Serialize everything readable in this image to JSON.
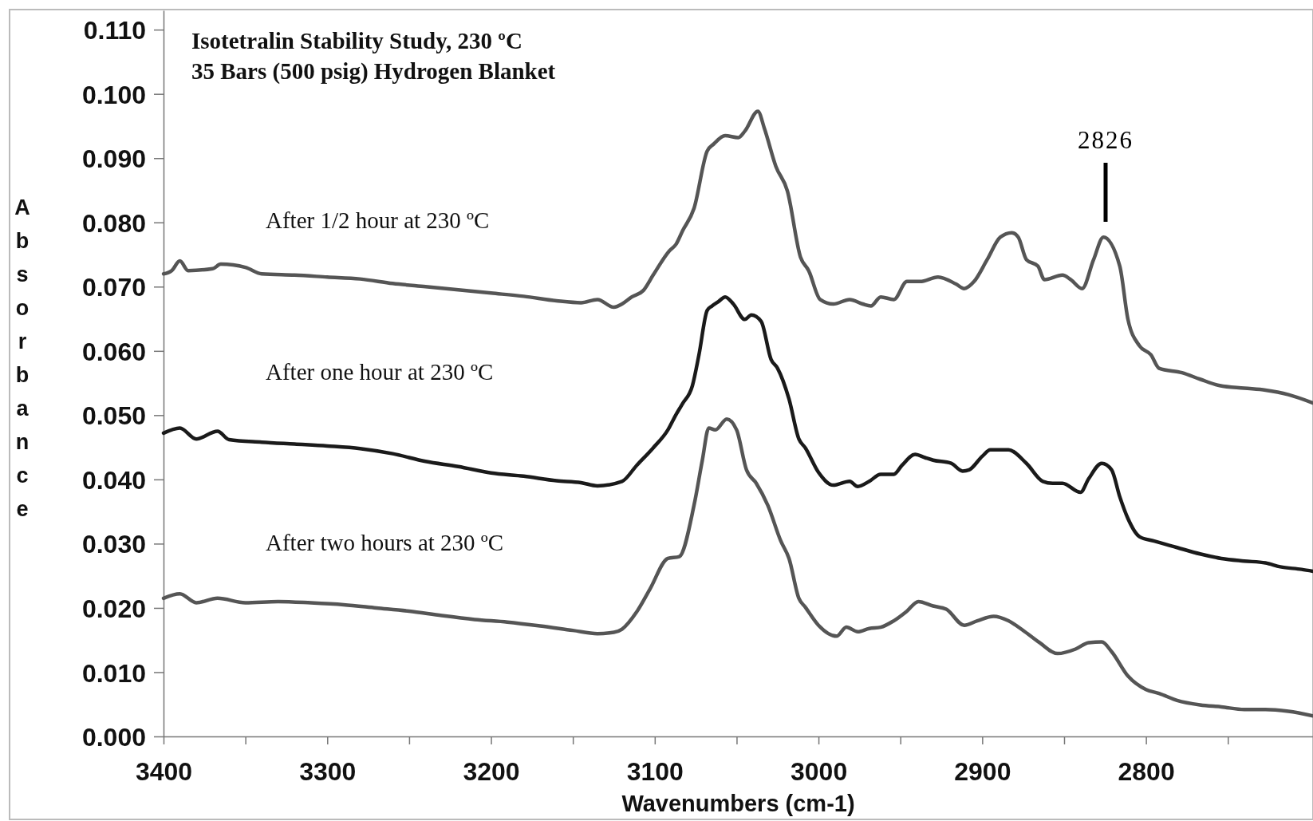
{
  "chart_data": {
    "type": "line",
    "title": "Isotetralin Stability Study, 230 ºC",
    "subtitle": "35 Bars (500 psig) Hydrogen Blanket",
    "xlabel": "Wavenumbers (cm-1)",
    "ylabel": "Absorbance",
    "xlim": [
      3400,
      2698
    ],
    "ylim": [
      0,
      0.113
    ],
    "xticks": [
      3400,
      {
        "value": 3350,
        "label": null
      },
      3300,
      {
        "value": 3250,
        "label": null
      },
      3200,
      {
        "value": 3150,
        "label": null
      },
      3100,
      {
        "value": 3050,
        "label": null
      },
      3000,
      {
        "value": 2950,
        "label": null
      },
      2900,
      {
        "value": 2850,
        "label": null
      },
      2800,
      {
        "value": 2750,
        "label": null
      }
    ],
    "yticks": [
      {
        "value": 0,
        "label": "0.000"
      },
      {
        "value": 0.01,
        "label": "0.010"
      },
      {
        "value": 0.02,
        "label": "0.020"
      },
      {
        "value": 0.03,
        "label": "0.030"
      },
      {
        "value": 0.04,
        "label": "0.040"
      },
      {
        "value": 0.05,
        "label": "0.050"
      },
      {
        "value": 0.06,
        "label": "0.060"
      },
      {
        "value": 0.07,
        "label": "0.070"
      },
      {
        "value": 0.08,
        "label": "0.080"
      },
      {
        "value": 0.09,
        "label": "0.090"
      },
      {
        "value": 0.1,
        "label": "0.100"
      },
      {
        "value": 0.11,
        "label": "0.110"
      }
    ],
    "grid": false,
    "marker": "none",
    "line_style": "solid",
    "series": [
      {
        "color": "#555555",
        "x": [
          3400,
          3395,
          3390,
          3385,
          3370,
          3365,
          3350,
          3340,
          3320,
          3300,
          3280,
          3260,
          3240,
          3220,
          3200,
          3180,
          3160,
          3145,
          3135,
          3125,
          3120,
          3114,
          3107,
          3101,
          3091,
          3087,
          3083,
          3076,
          3068,
          3064,
          3057,
          3049,
          3045,
          3037,
          3033,
          3026,
          3019,
          3011,
          3006,
          2999,
          2991,
          2981,
          2973,
          2968,
          2962,
          2954,
          2946,
          2938,
          2927,
          2916,
          2911,
          2905,
          2897,
          2889,
          2882,
          2878,
          2873,
          2866,
          2862,
          2851,
          2846,
          2839,
          2832,
          2826,
          2816,
          2811,
          2804,
          2797,
          2792,
          2778,
          2767,
          2755,
          2740,
          2727,
          2713,
          2698
        ],
        "values": [
          0.072,
          0.0725,
          0.074,
          0.0725,
          0.0728,
          0.0735,
          0.073,
          0.072,
          0.0718,
          0.0715,
          0.0712,
          0.0705,
          0.07,
          0.0695,
          0.069,
          0.0685,
          0.0678,
          0.0675,
          0.068,
          0.0668,
          0.0673,
          0.0684,
          0.0694,
          0.0718,
          0.0756,
          0.0766,
          0.0787,
          0.0822,
          0.0911,
          0.0922,
          0.0935,
          0.0932,
          0.0942,
          0.0973,
          0.0946,
          0.0887,
          0.0849,
          0.0746,
          0.0725,
          0.068,
          0.0673,
          0.068,
          0.0673,
          0.067,
          0.0684,
          0.068,
          0.0708,
          0.0708,
          0.0715,
          0.0704,
          0.0697,
          0.0708,
          0.0742,
          0.0777,
          0.0784,
          0.0777,
          0.0742,
          0.0732,
          0.0711,
          0.0718,
          0.0711,
          0.0697,
          0.0742,
          0.0777,
          0.0732,
          0.0649,
          0.0608,
          0.0594,
          0.0573,
          0.0566,
          0.0556,
          0.0546,
          0.0542,
          0.0539,
          0.0532,
          0.0519
        ]
      },
      {
        "color": "#1a1a1a",
        "x": [
          3400,
          3390,
          3380,
          3367,
          3360,
          3340,
          3320,
          3300,
          3280,
          3260,
          3240,
          3220,
          3200,
          3180,
          3160,
          3145,
          3135,
          3120,
          3111,
          3101,
          3092,
          3087,
          3083,
          3077,
          3073,
          3068,
          3065,
          3061,
          3057,
          3052,
          3045,
          3041,
          3035,
          3029,
          3025,
          3018,
          3012,
          3008,
          3000,
          2991,
          2981,
          2976,
          2969,
          2962,
          2954,
          2949,
          2941,
          2935,
          2930,
          2919,
          2912,
          2908,
          2900,
          2895,
          2884,
          2873,
          2863,
          2857,
          2851,
          2840,
          2835,
          2827,
          2821,
          2816,
          2811,
          2804,
          2795,
          2781,
          2767,
          2754,
          2740,
          2727,
          2718,
          2705,
          2698
        ],
        "values": [
          0.0472,
          0.048,
          0.0463,
          0.0475,
          0.0462,
          0.0458,
          0.0455,
          0.0452,
          0.0448,
          0.044,
          0.0428,
          0.042,
          0.041,
          0.0405,
          0.0398,
          0.0395,
          0.039,
          0.0397,
          0.0422,
          0.0449,
          0.0477,
          0.0501,
          0.0518,
          0.0546,
          0.0594,
          0.0663,
          0.067,
          0.0677,
          0.0684,
          0.0673,
          0.0649,
          0.0656,
          0.0646,
          0.0587,
          0.0573,
          0.0525,
          0.0463,
          0.0449,
          0.0411,
          0.0391,
          0.0397,
          0.0389,
          0.0397,
          0.0408,
          0.0408,
          0.0422,
          0.0439,
          0.0434,
          0.043,
          0.0425,
          0.0413,
          0.0415,
          0.0436,
          0.0446,
          0.0446,
          0.0425,
          0.0397,
          0.0394,
          0.0394,
          0.038,
          0.0401,
          0.0425,
          0.0415,
          0.0373,
          0.0339,
          0.0311,
          0.0304,
          0.0294,
          0.0284,
          0.0277,
          0.0273,
          0.027,
          0.0264,
          0.026,
          0.0257
        ]
      },
      {
        "color": "#555555",
        "x": [
          3400,
          3390,
          3380,
          3367,
          3350,
          3330,
          3310,
          3290,
          3270,
          3250,
          3230,
          3210,
          3190,
          3170,
          3150,
          3135,
          3125,
          3120,
          3111,
          3103,
          3092,
          3085,
          3076,
          3071,
          3067,
          3063,
          3056,
          3050,
          3044,
          3038,
          3031,
          3023,
          3018,
          3012,
          3008,
          3000,
          2989,
          2983,
          2976,
          2969,
          2962,
          2954,
          2946,
          2939,
          2930,
          2922,
          2911,
          2903,
          2893,
          2884,
          2874,
          2865,
          2854,
          2843,
          2835,
          2827,
          2821,
          2811,
          2800,
          2792,
          2781,
          2767,
          2754,
          2740,
          2727,
          2713,
          2698
        ],
        "values": [
          0.0215,
          0.0222,
          0.0208,
          0.0215,
          0.0208,
          0.021,
          0.0208,
          0.0205,
          0.02,
          0.0195,
          0.0188,
          0.0182,
          0.0178,
          0.0172,
          0.0165,
          0.016,
          0.0162,
          0.0167,
          0.0194,
          0.0229,
          0.0277,
          0.028,
          0.036,
          0.0429,
          0.048,
          0.0477,
          0.0494,
          0.0477,
          0.0415,
          0.0394,
          0.036,
          0.0304,
          0.0277,
          0.0215,
          0.0201,
          0.0173,
          0.0156,
          0.017,
          0.0163,
          0.0168,
          0.017,
          0.018,
          0.0195,
          0.021,
          0.0203,
          0.0198,
          0.0173,
          0.018,
          0.0187,
          0.018,
          0.0163,
          0.0146,
          0.0129,
          0.0136,
          0.0146,
          0.0147,
          0.0132,
          0.0094,
          0.0073,
          0.0067,
          0.0056,
          0.0049,
          0.0046,
          0.0042,
          0.0042,
          0.0039,
          0.0032
        ]
      }
    ],
    "annotations": [
      "After 1/2 hour at 230 ºC",
      "After one hour at 230 ºC",
      "After two hours at 230 ºC",
      "2826"
    ]
  }
}
